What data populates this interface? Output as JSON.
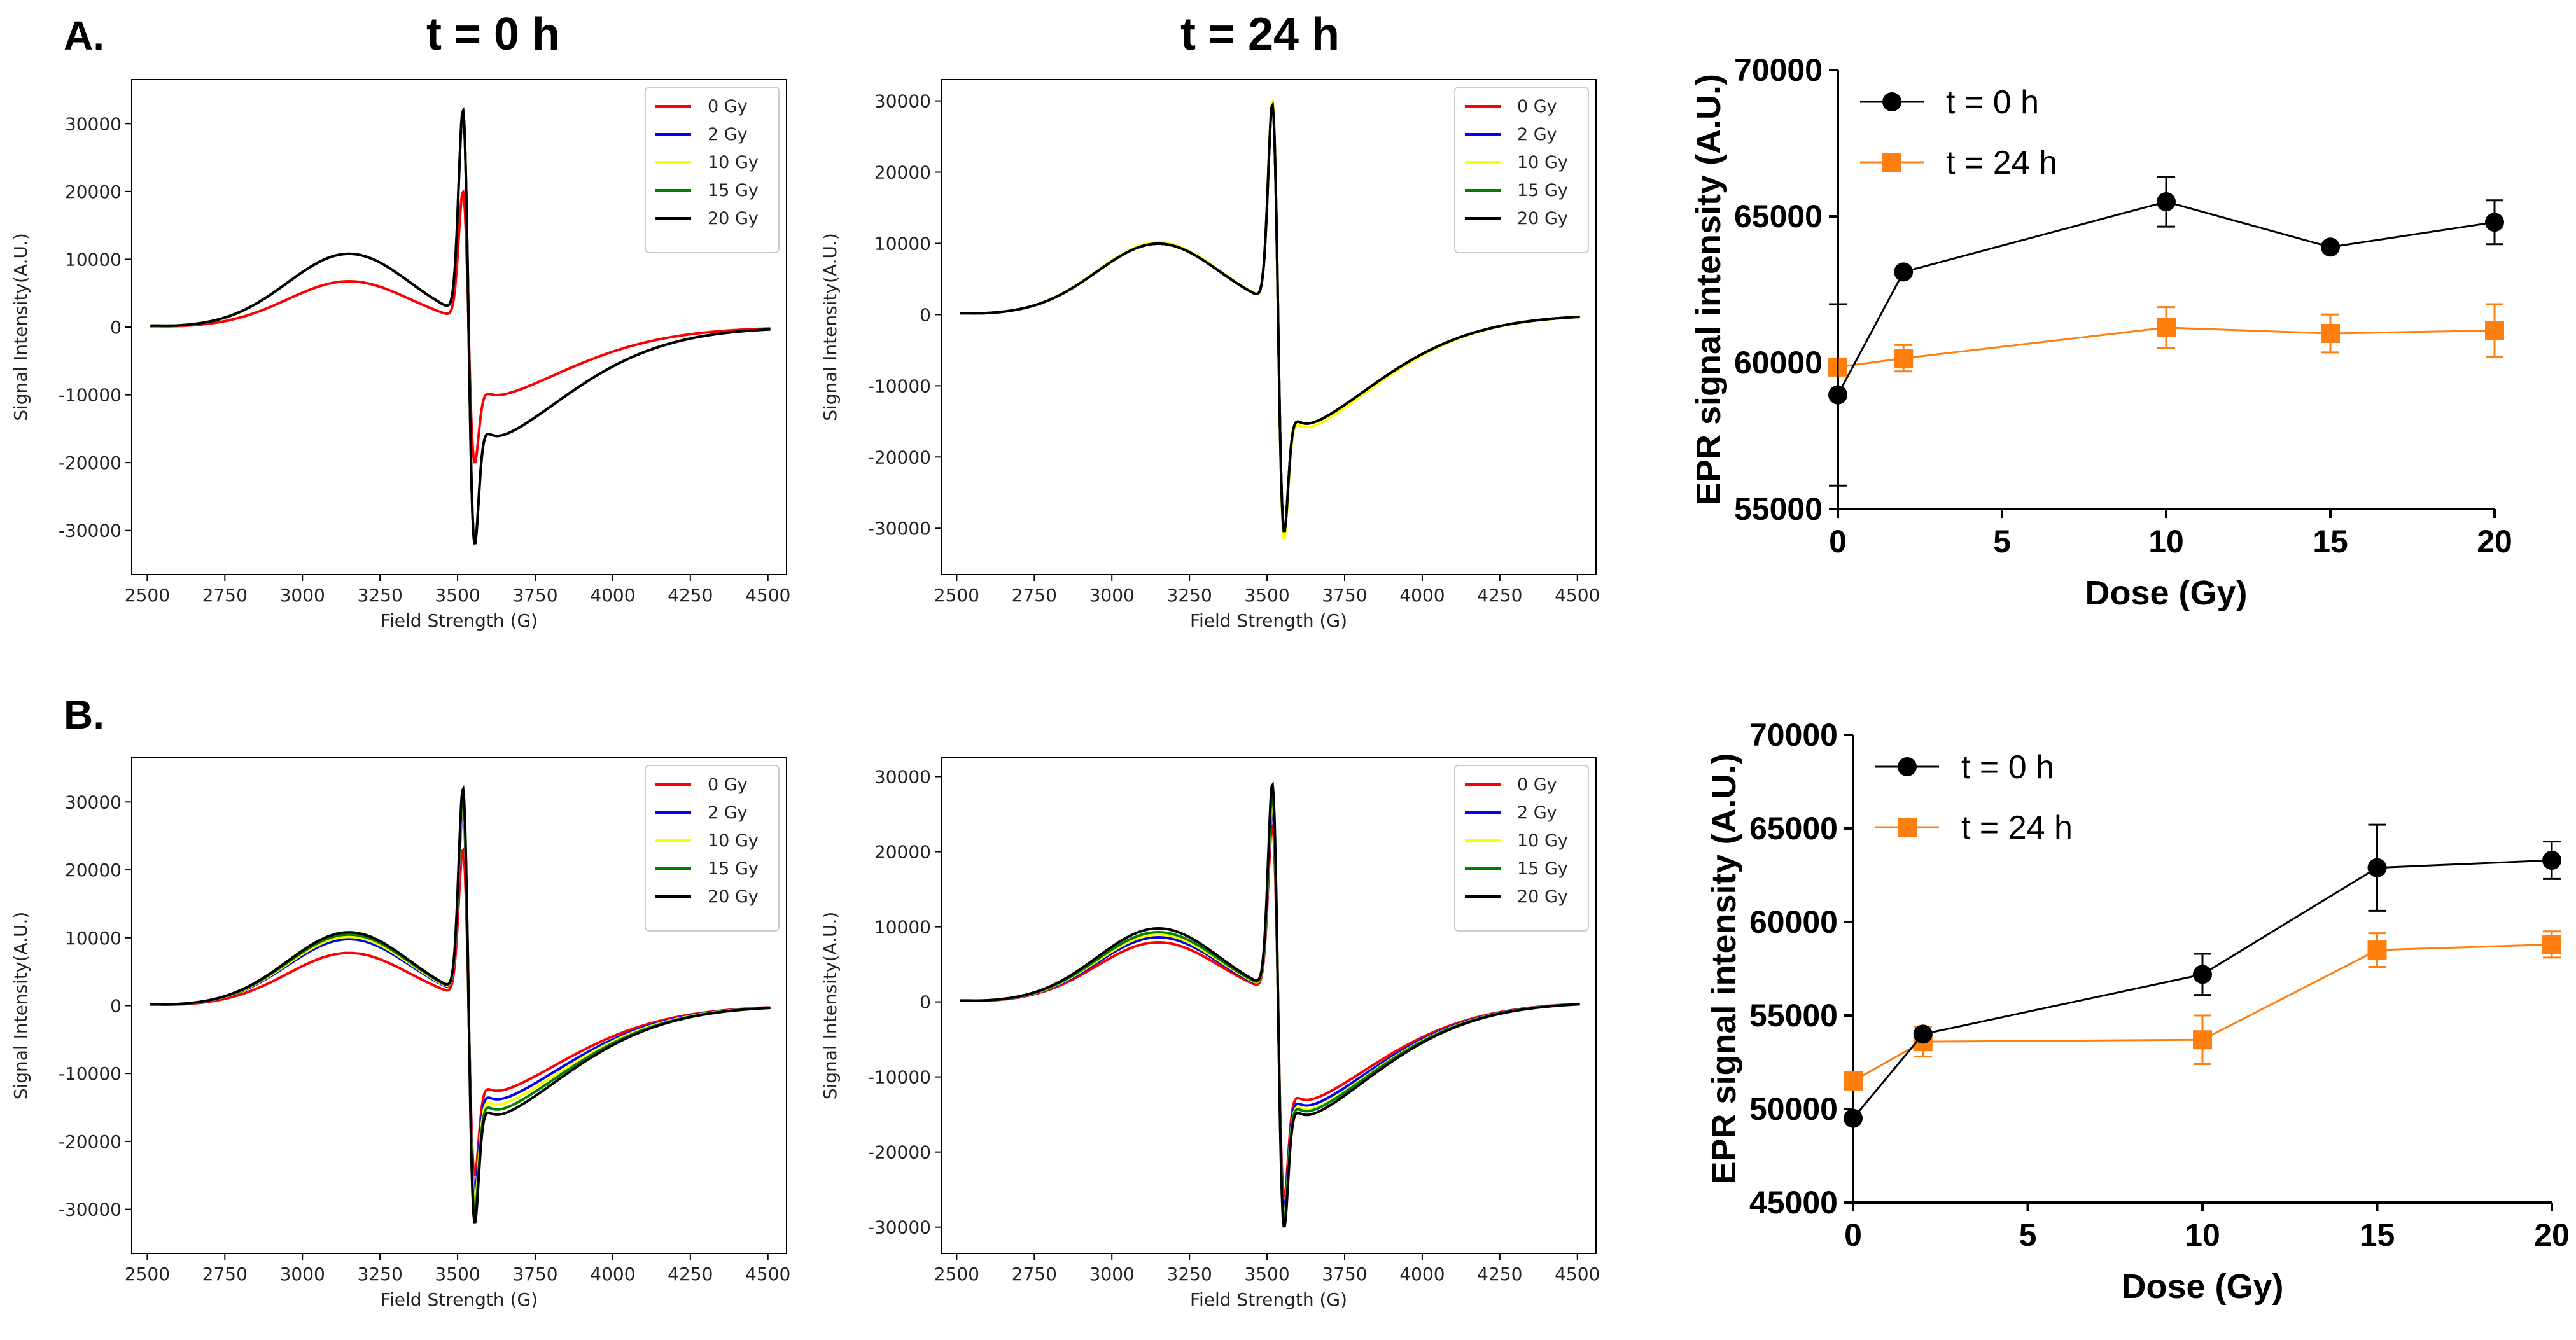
{
  "panels": [
    {
      "label": "A.",
      "titles": [
        "t = 0 h",
        "t = 24 h"
      ],
      "spectra": [
        {
          "type": "line",
          "title": "t = 0 h",
          "xlabel": "Field Strength (G)",
          "ylabel": "Signal Intensity(A.U.)",
          "xlim": [
            2450,
            4560
          ],
          "ylim": [
            -36500,
            36500
          ],
          "xticks": [
            2500,
            2750,
            3000,
            3250,
            3500,
            3750,
            4000,
            4250,
            4500
          ],
          "yticks": [
            -30000,
            -20000,
            -10000,
            0,
            10000,
            20000,
            30000
          ],
          "legend_position": "top-right",
          "series": [
            {
              "name": "0 Gy",
              "color": "#ff0000",
              "peak_max": 20000,
              "peak_min": -20000
            },
            {
              "name": "2 Gy",
              "color": "#0000ff",
              "peak_max": 32000,
              "peak_min": -32000
            },
            {
              "name": "10 Gy",
              "color": "#ffff00",
              "peak_max": 32000,
              "peak_min": -32000
            },
            {
              "name": "15 Gy",
              "color": "#008000",
              "peak_max": 32000,
              "peak_min": -32000
            },
            {
              "name": "20 Gy",
              "color": "#000000",
              "peak_max": 32000,
              "peak_min": -32000
            }
          ]
        },
        {
          "type": "line",
          "title": "t = 24 h",
          "xlabel": "Field Strength (G)",
          "ylabel": "Signal Intensity(A.U.)",
          "xlim": [
            2450,
            4560
          ],
          "ylim": [
            -36500,
            33000
          ],
          "xticks": [
            2500,
            2750,
            3000,
            3250,
            3500,
            3750,
            4000,
            4250,
            4500
          ],
          "yticks": [
            -30000,
            -20000,
            -10000,
            0,
            10000,
            20000,
            30000
          ],
          "legend_position": "top-right",
          "series": [
            {
              "name": "0 Gy",
              "color": "#ff0000",
              "peak_max": 29500,
              "peak_min": -30500
            },
            {
              "name": "2 Gy",
              "color": "#0000ff",
              "peak_max": 29500,
              "peak_min": -30500
            },
            {
              "name": "10 Gy",
              "color": "#ffff00",
              "peak_max": 30000,
              "peak_min": -31500
            },
            {
              "name": "15 Gy",
              "color": "#008000",
              "peak_max": 29500,
              "peak_min": -30500
            },
            {
              "name": "20 Gy",
              "color": "#000000",
              "peak_max": 29500,
              "peak_min": -30500
            }
          ]
        }
      ],
      "dose": {
        "type": "line",
        "xlabel": "Dose (Gy)",
        "ylabel": "EPR signal intensity (A.U.)",
        "xlim": [
          0,
          20
        ],
        "ylim": [
          55000,
          70000
        ],
        "xticks": [
          0,
          5,
          10,
          15,
          20
        ],
        "yticks": [
          55000,
          60000,
          65000,
          70000
        ],
        "x": [
          0,
          2,
          10,
          15,
          20
        ],
        "legend_position": "top-left",
        "series": [
          {
            "name": "t = 0 h",
            "color": "#000000",
            "marker": "circle",
            "values": [
              58900,
              63100,
              65500,
              63950,
              64800
            ],
            "errors": [
              3100,
              0,
              850,
              0,
              750
            ]
          },
          {
            "name": "t = 24 h",
            "color": "#ff7f0e",
            "marker": "square",
            "values": [
              59850,
              60150,
              61200,
              61000,
              61100
            ],
            "errors": [
              0,
              450,
              700,
              650,
              900
            ]
          }
        ]
      }
    },
    {
      "label": "B.",
      "titles": [],
      "spectra": [
        {
          "type": "line",
          "title": "",
          "xlabel": "Field Strength (G)",
          "ylabel": "Signal Intensity(A.U.)",
          "xlim": [
            2450,
            4560
          ],
          "ylim": [
            -36500,
            36500
          ],
          "xticks": [
            2500,
            2750,
            3000,
            3250,
            3500,
            3750,
            4000,
            4250,
            4500
          ],
          "yticks": [
            -30000,
            -20000,
            -10000,
            0,
            10000,
            20000,
            30000
          ],
          "legend_position": "top-right",
          "series": [
            {
              "name": "0 Gy",
              "color": "#ff0000",
              "peak_max": 23000,
              "peak_min": -25000
            },
            {
              "name": "2 Gy",
              "color": "#0000ff",
              "peak_max": 29000,
              "peak_min": -27500
            },
            {
              "name": "10 Gy",
              "color": "#ffff00",
              "peak_max": 30000,
              "peak_min": -29000
            },
            {
              "name": "15 Gy",
              "color": "#008000",
              "peak_max": 31000,
              "peak_min": -30500
            },
            {
              "name": "20 Gy",
              "color": "#000000",
              "peak_max": 32000,
              "peak_min": -32000
            }
          ]
        },
        {
          "type": "line",
          "title": "",
          "xlabel": "Field Strength (G)",
          "ylabel": "Signal Intensity(A.U.)",
          "xlim": [
            2450,
            4560
          ],
          "ylim": [
            -33500,
            32500
          ],
          "xticks": [
            2500,
            2750,
            3000,
            3250,
            3500,
            3750,
            4000,
            4250,
            4500
          ],
          "yticks": [
            -30000,
            -20000,
            -10000,
            0,
            10000,
            20000,
            30000
          ],
          "legend_position": "top-right",
          "series": [
            {
              "name": "0 Gy",
              "color": "#ff0000",
              "peak_max": 23500,
              "peak_min": -26000
            },
            {
              "name": "2 Gy",
              "color": "#0000ff",
              "peak_max": 25500,
              "peak_min": -27500
            },
            {
              "name": "10 Gy",
              "color": "#ffff00",
              "peak_max": 26500,
              "peak_min": -28500
            },
            {
              "name": "15 Gy",
              "color": "#008000",
              "peak_max": 27500,
              "peak_min": -29000
            },
            {
              "name": "20 Gy",
              "color": "#000000",
              "peak_max": 29000,
              "peak_min": -30000
            }
          ]
        }
      ],
      "dose": {
        "type": "line",
        "xlabel": "Dose (Gy)",
        "ylabel": "EPR signal intensity (A.U.)",
        "xlim": [
          0,
          20
        ],
        "ylim": [
          45000,
          70000
        ],
        "xticks": [
          0,
          5,
          10,
          15,
          20
        ],
        "yticks": [
          45000,
          50000,
          55000,
          60000,
          65000,
          70000
        ],
        "x": [
          0,
          2,
          10,
          15,
          20
        ],
        "legend_position": "top-left",
        "series": [
          {
            "name": "t = 0 h",
            "color": "#000000",
            "marker": "circle",
            "values": [
              49500,
              54000,
              57200,
              62900,
              63300
            ],
            "errors": [
              0,
              0,
              1100,
              2300,
              1000
            ]
          },
          {
            "name": "t = 24 h",
            "color": "#ff7f0e",
            "marker": "square",
            "values": [
              51500,
              53600,
              53700,
              58500,
              58800
            ],
            "errors": [
              0,
              800,
              1300,
              900,
              700
            ]
          }
        ]
      }
    }
  ]
}
